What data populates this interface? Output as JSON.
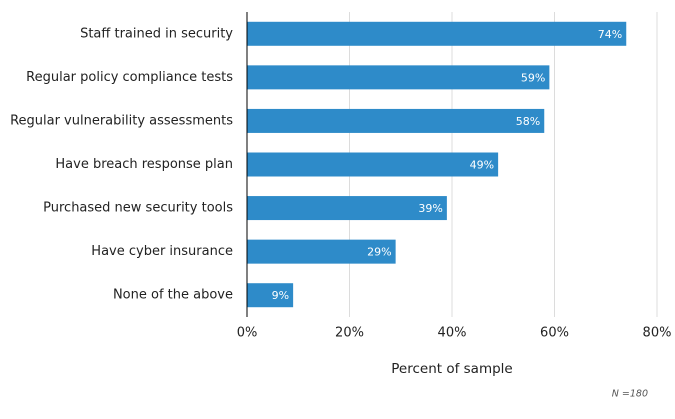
{
  "chart_data": {
    "type": "bar",
    "orientation": "horizontal",
    "categories": [
      "Staff trained in security",
      "Regular policy compliance tests",
      "Regular vulnerability assessments",
      "Have breach response plan",
      "Purchased new security tools",
      "Have cyber insurance",
      "None of the above"
    ],
    "values": [
      74,
      59,
      58,
      49,
      39,
      29,
      9
    ],
    "value_labels": [
      "74%",
      "59%",
      "58%",
      "49%",
      "39%",
      "29%",
      "9%"
    ],
    "color": "#2e8bc9",
    "xlabel": "Percent of sample",
    "annotation": "N =180",
    "xlim": [
      0,
      80
    ],
    "xticks": [
      {
        "value": 0,
        "label": "0%"
      },
      {
        "value": 20,
        "label": "20%"
      },
      {
        "value": 40,
        "label": "40%"
      },
      {
        "value": 60,
        "label": "60%"
      },
      {
        "value": 80,
        "label": "80%"
      }
    ],
    "grid": true
  }
}
